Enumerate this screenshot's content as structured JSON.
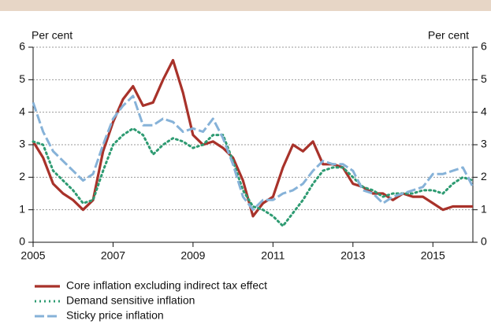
{
  "chart_data": {
    "type": "line",
    "y_label": "Per cent",
    "y2_label": "Per cent",
    "x": [
      2005,
      2005.25,
      2005.5,
      2005.75,
      2006,
      2006.25,
      2006.5,
      2006.75,
      2007,
      2007.25,
      2007.5,
      2007.75,
      2008,
      2008.25,
      2008.5,
      2008.75,
      2009,
      2009.25,
      2009.5,
      2009.75,
      2010,
      2010.25,
      2010.5,
      2010.75,
      2011,
      2011.25,
      2011.5,
      2011.75,
      2012,
      2012.25,
      2012.5,
      2012.75,
      2013,
      2013.25,
      2013.5,
      2013.75,
      2014,
      2014.25,
      2014.5,
      2014.75,
      2015,
      2015.25,
      2015.5,
      2015.75,
      2016
    ],
    "series": [
      {
        "name": "Core inflation excluding indirect tax effect",
        "color": "#a8322a",
        "style": "solid",
        "values": [
          3.1,
          2.6,
          1.8,
          1.5,
          1.3,
          1.0,
          1.3,
          2.8,
          3.7,
          4.4,
          4.8,
          4.2,
          4.3,
          5.0,
          5.6,
          4.6,
          3.3,
          3.0,
          3.1,
          2.9,
          2.6,
          1.9,
          0.8,
          1.2,
          1.4,
          2.3,
          3.0,
          2.8,
          3.1,
          2.4,
          2.4,
          2.3,
          1.8,
          1.7,
          1.5,
          1.5,
          1.3,
          1.5,
          1.4,
          1.4,
          1.2,
          1.0,
          1.1,
          1.1,
          1.1
        ]
      },
      {
        "name": "Demand sensitive inflation",
        "color": "#2e9b72",
        "style": "dotted",
        "values": [
          3.1,
          3.0,
          2.2,
          1.9,
          1.6,
          1.2,
          1.3,
          2.2,
          3.0,
          3.3,
          3.5,
          3.3,
          2.7,
          3.0,
          3.2,
          3.1,
          2.9,
          3.0,
          3.3,
          3.3,
          2.5,
          1.6,
          1.1,
          1.0,
          0.8,
          0.5,
          0.9,
          1.3,
          1.8,
          2.2,
          2.3,
          2.3,
          2.0,
          1.7,
          1.6,
          1.4,
          1.5,
          1.5,
          1.5,
          1.6,
          1.6,
          1.5,
          1.8,
          2.0,
          1.9
        ]
      },
      {
        "name": "Sticky price inflation",
        "color": "#86b2d8",
        "style": "dashed",
        "values": [
          4.3,
          3.4,
          2.8,
          2.5,
          2.2,
          1.9,
          2.1,
          3.0,
          3.8,
          4.2,
          4.5,
          3.6,
          3.6,
          3.8,
          3.7,
          3.4,
          3.5,
          3.4,
          3.8,
          3.2,
          2.4,
          1.4,
          1.0,
          1.3,
          1.3,
          1.5,
          1.6,
          1.8,
          2.2,
          2.5,
          2.4,
          2.4,
          2.2,
          1.6,
          1.5,
          1.2,
          1.4,
          1.5,
          1.6,
          1.7,
          2.1,
          2.1,
          2.2,
          2.3,
          1.7
        ]
      }
    ],
    "xlim": [
      2005,
      2016
    ],
    "xticks": [
      2005,
      2007,
      2009,
      2011,
      2013,
      2015
    ],
    "ylim": [
      0,
      6
    ],
    "yticks": [
      0,
      1,
      2,
      3,
      4,
      5,
      6
    ],
    "y2lim": [
      0,
      6
    ],
    "y2ticks": [
      0,
      1,
      2,
      3,
      4,
      5,
      6
    ],
    "grid": true
  }
}
